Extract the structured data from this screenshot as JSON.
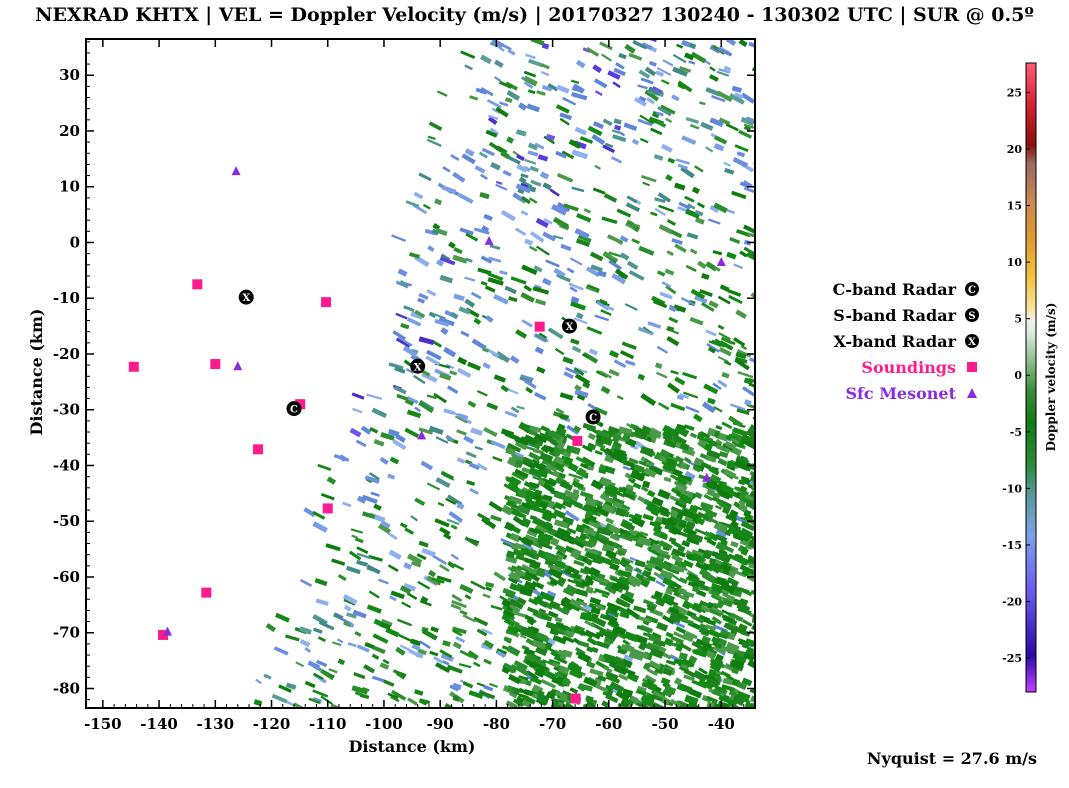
{
  "title": "NEXRAD KHTX | VEL = Doppler Velocity (m/s) | 20170327 130240 - 130302 UTC | SUR @ 0.5º",
  "map": {
    "xlabel": "Distance (km)",
    "ylabel": "Distance (km)",
    "xlim": [
      -153,
      -34
    ],
    "ylim": [
      -83.5,
      36.5
    ],
    "xticks": [
      -150,
      -140,
      -130,
      -120,
      -110,
      -100,
      -90,
      -80,
      -70,
      -60,
      -50,
      -40
    ],
    "yticks": [
      30,
      20,
      10,
      0,
      -10,
      -20,
      -30,
      -40,
      -50,
      -60,
      -70,
      -80
    ],
    "sites": {
      "x_band": [
        {
          "x": -124.5,
          "y": -9.8
        },
        {
          "x": -94,
          "y": -22.2
        },
        {
          "x": -67,
          "y": -15
        }
      ],
      "c_band": [
        {
          "x": -116,
          "y": -29.8
        },
        {
          "x": -62.8,
          "y": -31.3
        }
      ],
      "soundings": [
        {
          "x": -133.2,
          "y": -7.5
        },
        {
          "x": -110.3,
          "y": -10.7
        },
        {
          "x": -144.5,
          "y": -22.3
        },
        {
          "x": -130,
          "y": -21.8
        },
        {
          "x": -114.9,
          "y": -29
        },
        {
          "x": -122.4,
          "y": -37.1
        },
        {
          "x": -110,
          "y": -47.7
        },
        {
          "x": -72.3,
          "y": -15.1
        },
        {
          "x": -65.6,
          "y": -35.6
        },
        {
          "x": -131.6,
          "y": -62.8
        },
        {
          "x": -139.3,
          "y": -70.4
        },
        {
          "x": -65.9,
          "y": -81.8
        }
      ],
      "mesonet": [
        {
          "x": -126.3,
          "y": 12.8
        },
        {
          "x": -126,
          "y": -22.2
        },
        {
          "x": -81.3,
          "y": 0.3
        },
        {
          "x": -93.3,
          "y": -34.6
        },
        {
          "x": -138.5,
          "y": -69.8
        },
        {
          "x": -42.6,
          "y": -42.2
        },
        {
          "x": -40,
          "y": -3.5
        }
      ]
    }
  },
  "legend": [
    {
      "label": "C-band Radar",
      "symbol": "C",
      "color": "#000000"
    },
    {
      "label": "S-band Radar",
      "symbol": "S",
      "color": "#000000"
    },
    {
      "label": "X-band Radar",
      "symbol": "X",
      "color": "#000000"
    },
    {
      "label": "Soundings",
      "symbol": "square",
      "color": "#ff1b8d"
    },
    {
      "label": "Sfc Mesonet",
      "symbol": "triangle",
      "color": "#8a2be2"
    }
  ],
  "colorbar": {
    "label": "Doppler velocity (m/s)",
    "range": [
      -28,
      27.6
    ],
    "ticks": [
      25,
      20,
      15,
      10,
      5,
      0,
      -5,
      -10,
      -15,
      -20,
      -25
    ]
  },
  "nyquist": "Nyquist = 27.6 m/s"
}
